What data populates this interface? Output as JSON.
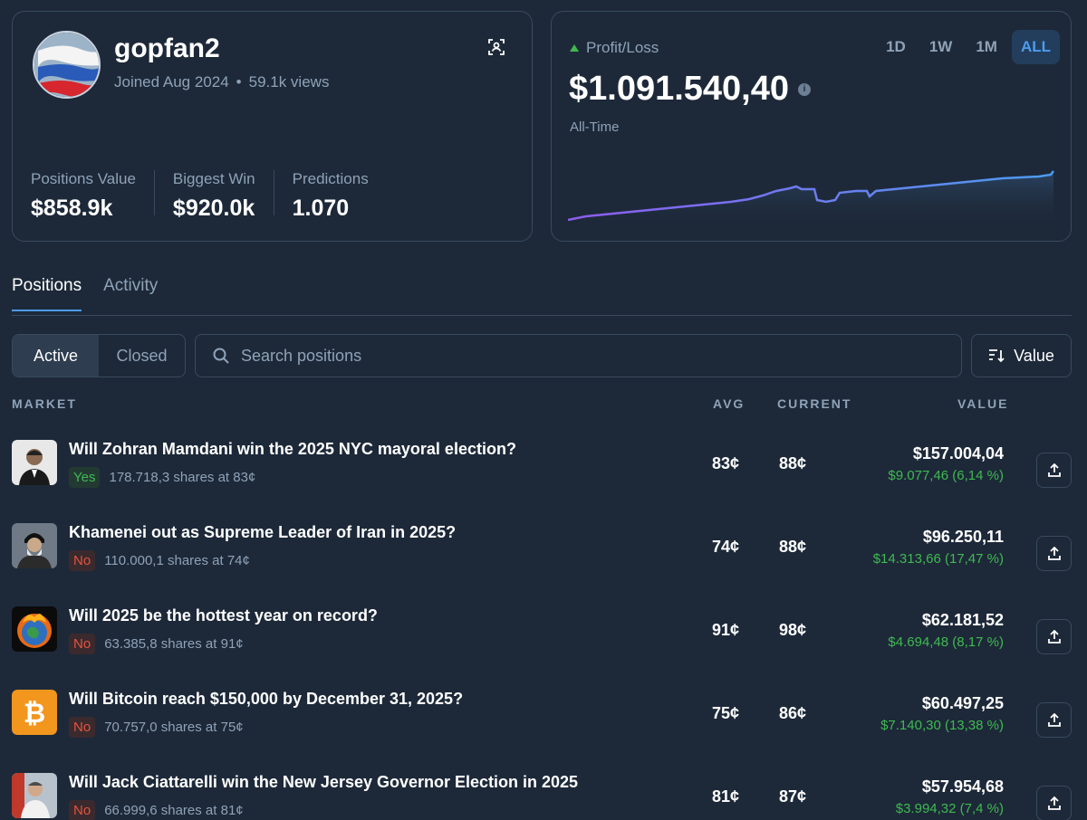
{
  "profile": {
    "username": "gopfan2",
    "joined": "Joined Aug 2024",
    "views": "59.1k views",
    "separator": "•",
    "stats": [
      {
        "label": "Positions Value",
        "value": "$858.9k"
      },
      {
        "label": "Biggest Win",
        "value": "$920.0k"
      },
      {
        "label": "Predictions",
        "value": "1.070"
      }
    ]
  },
  "pnl": {
    "label": "Profit/Loss",
    "value": "$1.091.540,40",
    "period": "All-Time",
    "ranges": [
      "1D",
      "1W",
      "1M",
      "ALL"
    ],
    "active_range": "ALL"
  },
  "tabs": [
    {
      "label": "Positions",
      "active": true
    },
    {
      "label": "Activity",
      "active": false
    }
  ],
  "filters": {
    "active_label": "Active",
    "closed_label": "Closed",
    "search_placeholder": "Search positions",
    "sort_label": "Value"
  },
  "table": {
    "headers": {
      "market": "MARKET",
      "avg": "AVG",
      "current": "CURRENT",
      "value": "VALUE"
    },
    "rows": [
      {
        "title": "Will Zohran Mamdani win the 2025 NYC mayoral election?",
        "outcome": "Yes",
        "shares": "178.718,3 shares at 83¢",
        "avg": "83¢",
        "current": "88¢",
        "value": "$157.004,04",
        "pnl": "$9.077,46 (6,14 %)",
        "thumb": "portrait-icon"
      },
      {
        "title": "Khamenei out as Supreme Leader of Iran in 2025?",
        "outcome": "No",
        "shares": "110.000,1 shares at 74¢",
        "avg": "74¢",
        "current": "88¢",
        "value": "$96.250,11",
        "pnl": "$14.313,66 (17,47 %)",
        "thumb": "portrait-icon"
      },
      {
        "title": "Will 2025 be the hottest year on record?",
        "outcome": "No",
        "shares": "63.385,8 shares at 91¢",
        "avg": "91¢",
        "current": "98¢",
        "value": "$62.181,52",
        "pnl": "$4.694,48 (8,17 %)",
        "thumb": "burning-earth-icon"
      },
      {
        "title": "Will Bitcoin reach $150,000 by December 31, 2025?",
        "outcome": "No",
        "shares": "70.757,0 shares at 75¢",
        "avg": "75¢",
        "current": "86¢",
        "value": "$60.497,25",
        "pnl": "$7.140,30 (13,38 %)",
        "thumb": "bitcoin-icon"
      },
      {
        "title": "Will Jack Ciattarelli win the New Jersey Governor Election in 2025",
        "outcome": "No",
        "shares": "66.999,6 shares at 81¢",
        "avg": "81¢",
        "current": "87¢",
        "value": "$57.954,68",
        "pnl": "$3.994,32 (7,4 %)",
        "thumb": "portrait-icon"
      }
    ]
  },
  "colors": {
    "background": "#1d2939",
    "accent": "#4c9cf0",
    "positive": "#3fb950",
    "negative": "#e5533d",
    "muted": "#8fa2b8"
  }
}
